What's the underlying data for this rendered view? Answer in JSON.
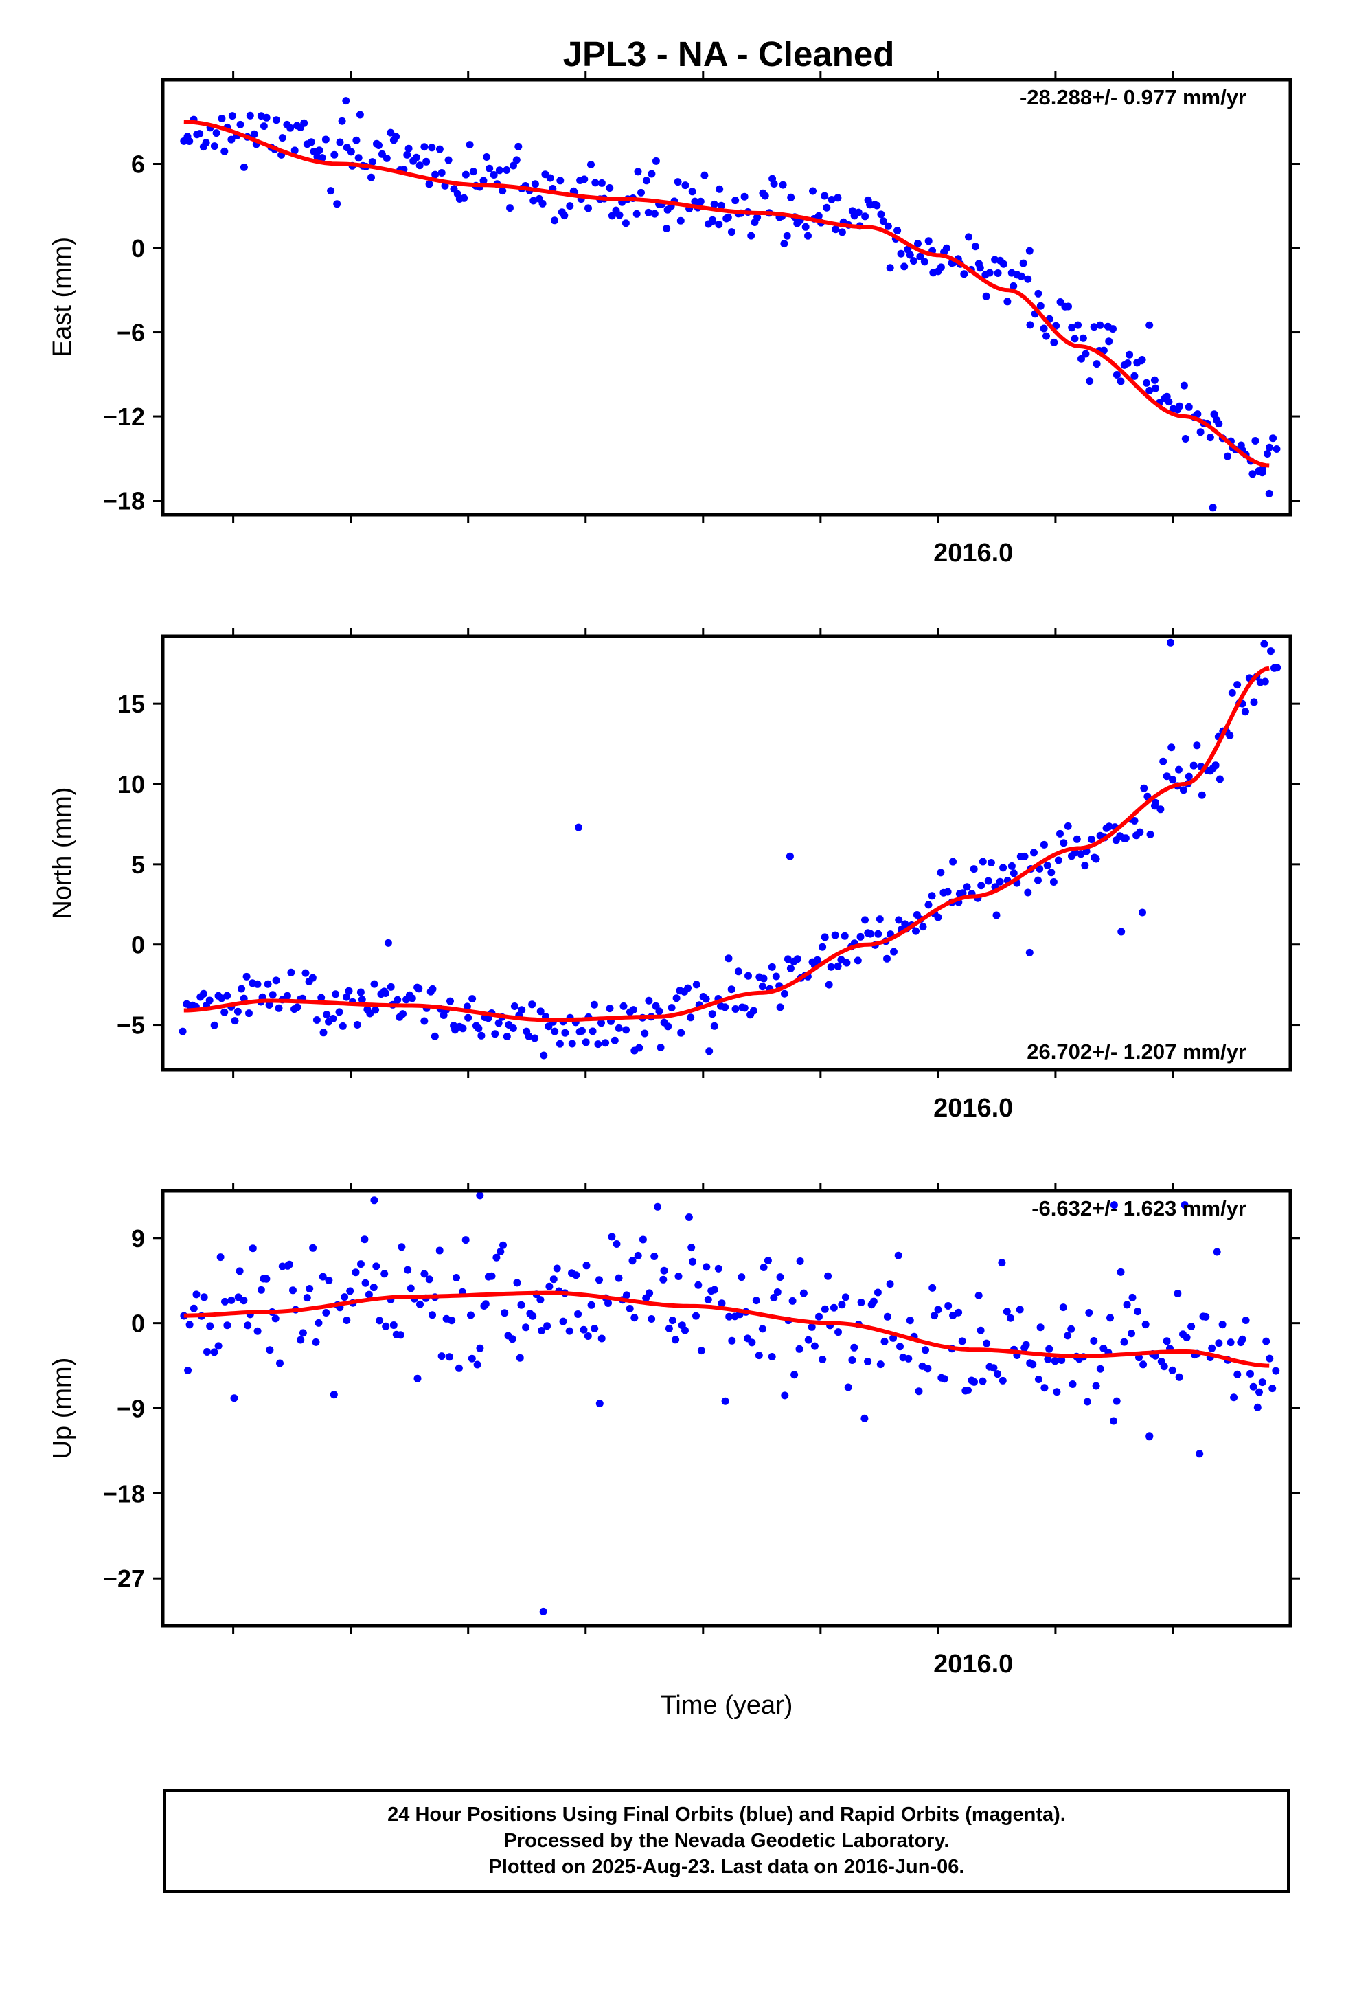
{
  "title": "JPL3  - NA - Cleaned",
  "colors": {
    "final_orbits": "#0000ff",
    "fit_line": "#ff0000",
    "frame": "#000000"
  },
  "chart_data": [
    {
      "type": "scatter",
      "panel": "east",
      "ylabel": "East (mm)",
      "xlabel": "",
      "x_tick_label": "2016.0",
      "ylim": [
        -19,
        12
      ],
      "yticks": [
        -18,
        -12,
        -6,
        0,
        6
      ],
      "xlim": [
        2014.85,
        2016.45
      ],
      "rate_text": "-28.288+/- 0.977 mm/yr",
      "rate_position": "top-right",
      "fit": {
        "x": [
          2014.88,
          2015.1,
          2015.3,
          2015.5,
          2015.7,
          2015.85,
          2015.95,
          2016.05,
          2016.15,
          2016.3,
          2016.42
        ],
        "y": [
          9,
          6,
          4.5,
          3.5,
          2.5,
          1.5,
          -0.5,
          -3,
          -7,
          -12,
          -15.5
        ]
      },
      "anchors": {
        "x": [
          2014.88,
          2015.0,
          2015.15,
          2015.3,
          2015.45,
          2015.6,
          2015.7,
          2015.78,
          2015.85,
          2015.9,
          2015.95,
          2016.0,
          2016.05,
          2016.12,
          2016.2,
          2016.3,
          2016.42
        ],
        "y": [
          8.5,
          8.0,
          6.5,
          5.0,
          3.5,
          3.0,
          2.0,
          2.5,
          3.0,
          0.0,
          -1.0,
          -1.0,
          -2.0,
          -5.5,
          -8.0,
          -11.5,
          -15.0
        ]
      },
      "outliers": {
        "x": [
          2015.11,
          2015.13,
          2015.55,
          2015.63,
          2015.64,
          2015.73,
          2016.08,
          2016.18,
          2016.25,
          2016.34,
          2016.41,
          2016.42
        ],
        "y": [
          10.5,
          9.5,
          6.2,
          2.0,
          4.2,
          4.5,
          -0.2,
          -5.5,
          -5.5,
          -18.5,
          -16.0,
          -17.5
        ]
      },
      "noise_sd": 1.0,
      "num_points": 330,
      "seed": 11
    },
    {
      "type": "scatter",
      "panel": "north",
      "ylabel": "North (mm)",
      "xlabel": "",
      "x_tick_label": "2016.0",
      "ylim": [
        -7.8,
        19.2
      ],
      "yticks": [
        -5,
        0,
        5,
        10,
        15
      ],
      "xlim": [
        2014.85,
        2016.45
      ],
      "rate_text": "26.702+/- 1.207 mm/yr",
      "rate_position": "bottom-right",
      "fit": {
        "x": [
          2014.88,
          2015.0,
          2015.2,
          2015.4,
          2015.55,
          2015.7,
          2015.85,
          2016.0,
          2016.15,
          2016.3,
          2016.42
        ],
        "y": [
          -4.1,
          -3.5,
          -3.8,
          -4.7,
          -4.5,
          -3.0,
          0.0,
          3.0,
          6.0,
          10.0,
          17.2
        ]
      },
      "anchors": {
        "x": [
          2014.88,
          2015.0,
          2015.2,
          2015.4,
          2015.55,
          2015.7,
          2015.85,
          2016.0,
          2016.15,
          2016.3,
          2016.42
        ],
        "y": [
          -4.0,
          -3.2,
          -4.0,
          -5.0,
          -5.0,
          -3.0,
          0.0,
          3.0,
          6.0,
          10.0,
          17.0
        ]
      },
      "outliers": {
        "x": [
          2015.17,
          2015.44,
          2015.74,
          2016.08,
          2016.21,
          2016.24,
          2016.28,
          2016.35
        ],
        "y": [
          0.1,
          7.3,
          5.5,
          -0.5,
          0.8,
          2.0,
          18.8,
          10.3
        ]
      },
      "noise_sd": 0.9,
      "num_points": 330,
      "seed": 23
    },
    {
      "type": "scatter",
      "panel": "up",
      "ylabel": "Up (mm)",
      "xlabel": "Time (year)",
      "x_tick_label": "2016.0",
      "ylim": [
        -32,
        14
      ],
      "yticks": [
        -27,
        -18,
        -9,
        0,
        9
      ],
      "xlim": [
        2014.85,
        2016.45
      ],
      "rate_text": "-6.632+/- 1.623 mm/yr",
      "rate_position": "top-right",
      "fit": {
        "x": [
          2014.88,
          2015.0,
          2015.2,
          2015.4,
          2015.6,
          2015.8,
          2016.0,
          2016.15,
          2016.3,
          2016.42
        ],
        "y": [
          0.8,
          1.2,
          2.8,
          3.2,
          1.8,
          0.0,
          -2.8,
          -3.5,
          -3.0,
          -4.5
        ]
      },
      "anchors": {
        "x": [
          2014.88,
          2015.0,
          2015.2,
          2015.4,
          2015.6,
          2015.8,
          2016.0,
          2016.15,
          2016.3,
          2016.42
        ],
        "y": [
          0.5,
          1.5,
          3.0,
          3.5,
          2.0,
          0.0,
          -3.0,
          -3.5,
          -3.0,
          -4.5
        ]
      },
      "outliers": {
        "x": [
          2015.15,
          2015.3,
          2015.39,
          2015.47,
          2015.6,
          2016.2,
          2016.25,
          2016.3
        ],
        "y": [
          13.0,
          13.5,
          -30.5,
          -8.5,
          8.0,
          12.5,
          -12.0,
          12.5
        ]
      },
      "noise_sd": 3.6,
      "num_points": 330,
      "seed": 37
    }
  ],
  "footer": {
    "line1": "24 Hour Positions Using Final Orbits (blue) and Rapid Orbits (magenta).",
    "line2": "Processed by the Nevada Geodetic Laboratory.",
    "line3": "Plotted on 2025-Aug-23. Last data on 2016-Jun-06."
  }
}
